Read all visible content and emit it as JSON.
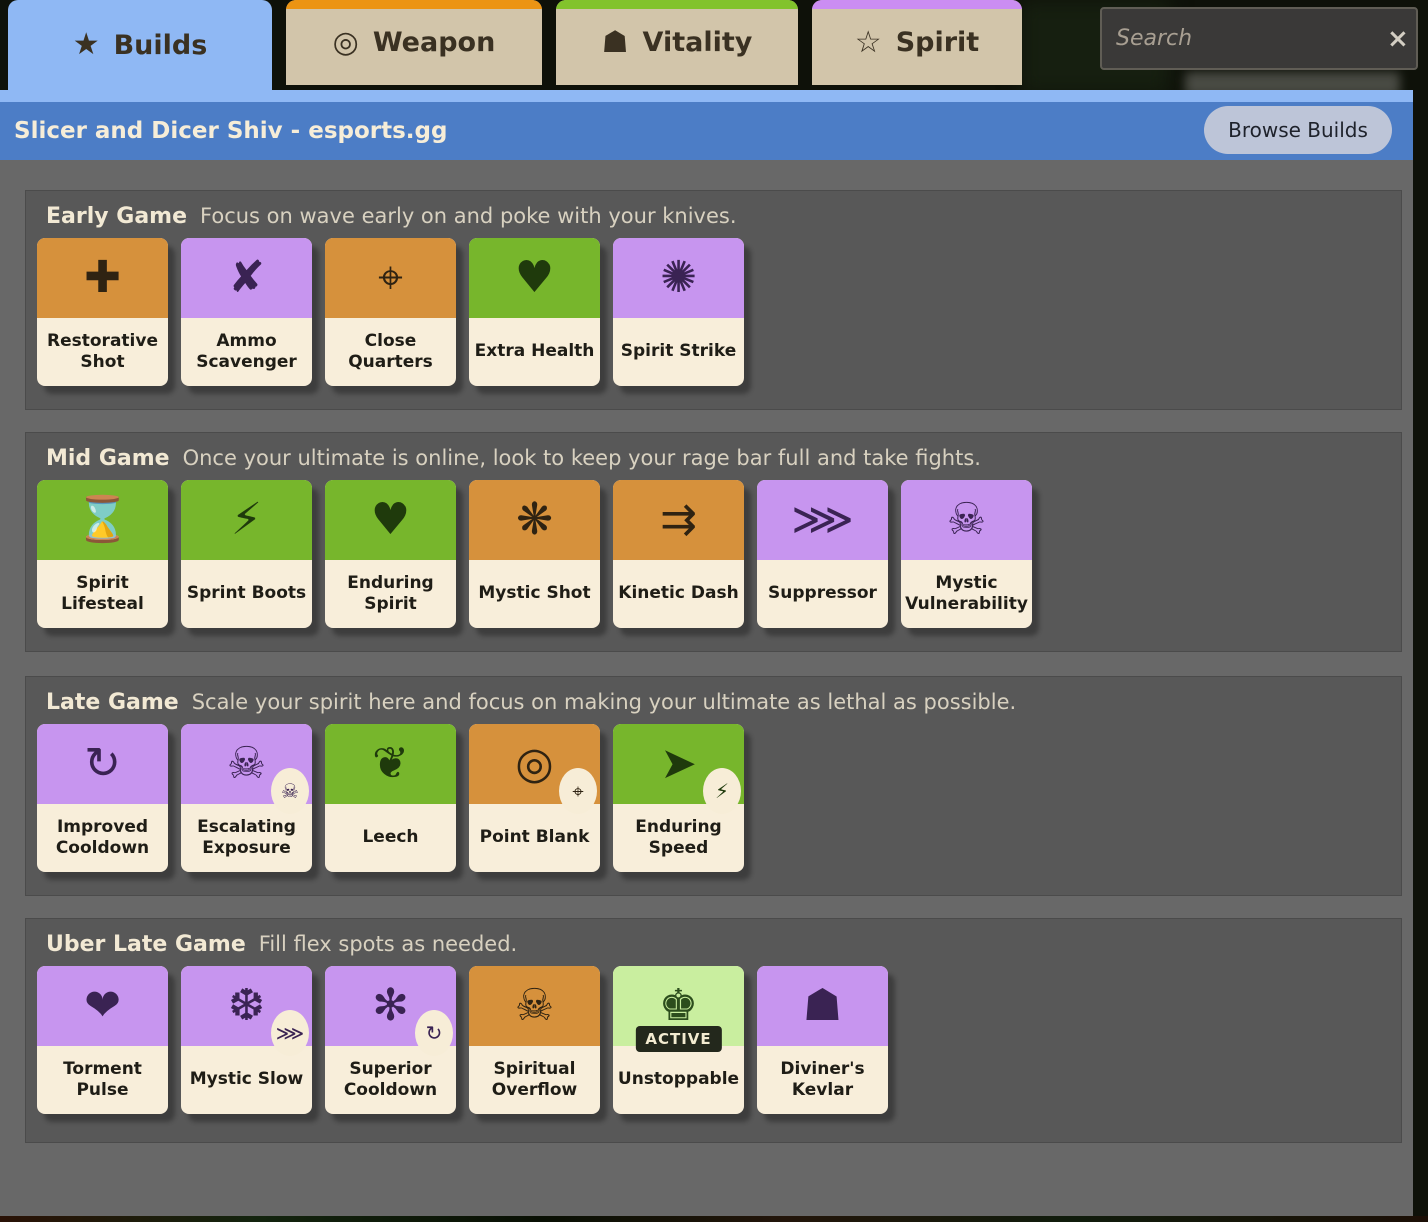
{
  "colors": {
    "tab_active_blue": "#8fb8f4",
    "header_blue": "#4c7dc6",
    "weapon_accent": "#ec9413",
    "vitality_accent": "#82c32c",
    "spirit_accent": "#cb8df2",
    "weapon_orange": "#d6913c",
    "spirit_purple": "#c795ef",
    "vitality_green": "#77b62c",
    "active_light_green": "#c9ee9f",
    "card_cream": "#f8eeda"
  },
  "tabs": [
    {
      "label": "Builds",
      "icon": "★",
      "active": true
    },
    {
      "label": "Weapon",
      "icon": "◎"
    },
    {
      "label": "Vitality",
      "icon": "☗"
    },
    {
      "label": "Spirit",
      "icon": "☆"
    }
  ],
  "search": {
    "placeholder": "Search",
    "clear_icon": "×"
  },
  "build_header": {
    "title": "Slicer and Dicer Shiv - esports.gg",
    "browse_button": "Browse Builds"
  },
  "sections": [
    {
      "title": "Early Game",
      "description": "Focus on wave early on and poke with your knives.",
      "items": [
        {
          "name": "Restorative Shot",
          "category": "weapon",
          "icon": "✚",
          "color": "#d6913c",
          "icon_color": "#2f2312"
        },
        {
          "name": "Ammo Scavenger",
          "category": "spirit",
          "icon": "✘",
          "color": "#c795ef",
          "icon_color": "#3a2353"
        },
        {
          "name": "Close Quarters",
          "category": "weapon",
          "icon": "⌖",
          "color": "#d6913c",
          "icon_color": "#2f2312"
        },
        {
          "name": "Extra Health",
          "category": "vitality",
          "icon": "♥",
          "color": "#77b62c",
          "icon_color": "#1f3a0c"
        },
        {
          "name": "Spirit Strike",
          "category": "spirit",
          "icon": "✺",
          "color": "#c795ef",
          "icon_color": "#3a2353"
        }
      ]
    },
    {
      "title": "Mid Game",
      "description": "Once your ultimate is online, look to keep your rage bar full and take fights.",
      "items": [
        {
          "name": "Spirit Lifesteal",
          "category": "vitality",
          "icon": "⌛",
          "color": "#77b62c",
          "icon_color": "#1f3a0c"
        },
        {
          "name": "Sprint Boots",
          "category": "vitality",
          "icon": "⚡",
          "color": "#77b62c",
          "icon_color": "#1f3a0c"
        },
        {
          "name": "Enduring Spirit",
          "category": "vitality",
          "icon": "♥",
          "color": "#77b62c",
          "icon_color": "#1f3a0c"
        },
        {
          "name": "Mystic Shot",
          "category": "weapon",
          "icon": "❋",
          "color": "#d6913c",
          "icon_color": "#2f2312"
        },
        {
          "name": "Kinetic Dash",
          "category": "weapon",
          "icon": "⇉",
          "color": "#d6913c",
          "icon_color": "#2f2312"
        },
        {
          "name": "Suppressor",
          "category": "spirit",
          "icon": "⋙",
          "color": "#c795ef",
          "icon_color": "#3a2353"
        },
        {
          "name": "Mystic Vulnerability",
          "category": "spirit",
          "icon": "☠",
          "color": "#c795ef",
          "icon_color": "#3a2353"
        }
      ]
    },
    {
      "title": "Late Game",
      "description": "Scale your spirit here and focus on making your ultimate as lethal as possible.",
      "items": [
        {
          "name": "Improved Cooldown",
          "category": "spirit",
          "icon": "↻",
          "color": "#c795ef",
          "icon_color": "#3a2353"
        },
        {
          "name": "Escalating Exposure",
          "category": "spirit",
          "icon": "☠",
          "color": "#c795ef",
          "icon_color": "#3a2353",
          "badge": {
            "icon": "☠",
            "icon_color": "#3a2353"
          }
        },
        {
          "name": "Leech",
          "category": "vitality",
          "icon": "❦",
          "color": "#77b62c",
          "icon_color": "#1f3a0c"
        },
        {
          "name": "Point Blank",
          "category": "weapon",
          "icon": "◎",
          "color": "#d6913c",
          "icon_color": "#2f2312",
          "badge": {
            "icon": "⌖",
            "icon_color": "#2f2312"
          }
        },
        {
          "name": "Enduring Speed",
          "category": "vitality",
          "icon": "➤",
          "color": "#77b62c",
          "icon_color": "#1f3a0c",
          "badge": {
            "icon": "⚡",
            "icon_color": "#1f3a0c"
          }
        }
      ]
    },
    {
      "title": "Uber Late Game",
      "description": "Fill flex spots as needed.",
      "items": [
        {
          "name": "Torment Pulse",
          "category": "spirit",
          "icon": "❤",
          "color": "#c795ef",
          "icon_color": "#3a2353"
        },
        {
          "name": "Mystic Slow",
          "category": "spirit",
          "icon": "❆",
          "color": "#c795ef",
          "icon_color": "#3a2353",
          "badge": {
            "icon": "⋙",
            "icon_color": "#3a2353"
          }
        },
        {
          "name": "Superior Cooldown",
          "category": "spirit",
          "icon": "✻",
          "color": "#c795ef",
          "icon_color": "#3a2353",
          "badge": {
            "icon": "↻",
            "icon_color": "#3a2353"
          }
        },
        {
          "name": "Spiritual Overflow",
          "category": "weapon",
          "icon": "☠",
          "color": "#d6913c",
          "icon_color": "#2f2312"
        },
        {
          "name": "Unstoppable",
          "category": "active",
          "icon": "♚",
          "color": "#c9ee9f",
          "icon_color": "#2c4d1d",
          "active_label": "ACTIVE"
        },
        {
          "name": "Diviner's Kevlar",
          "category": "spirit",
          "icon": "☗",
          "color": "#c795ef",
          "icon_color": "#3a2353"
        }
      ]
    }
  ]
}
